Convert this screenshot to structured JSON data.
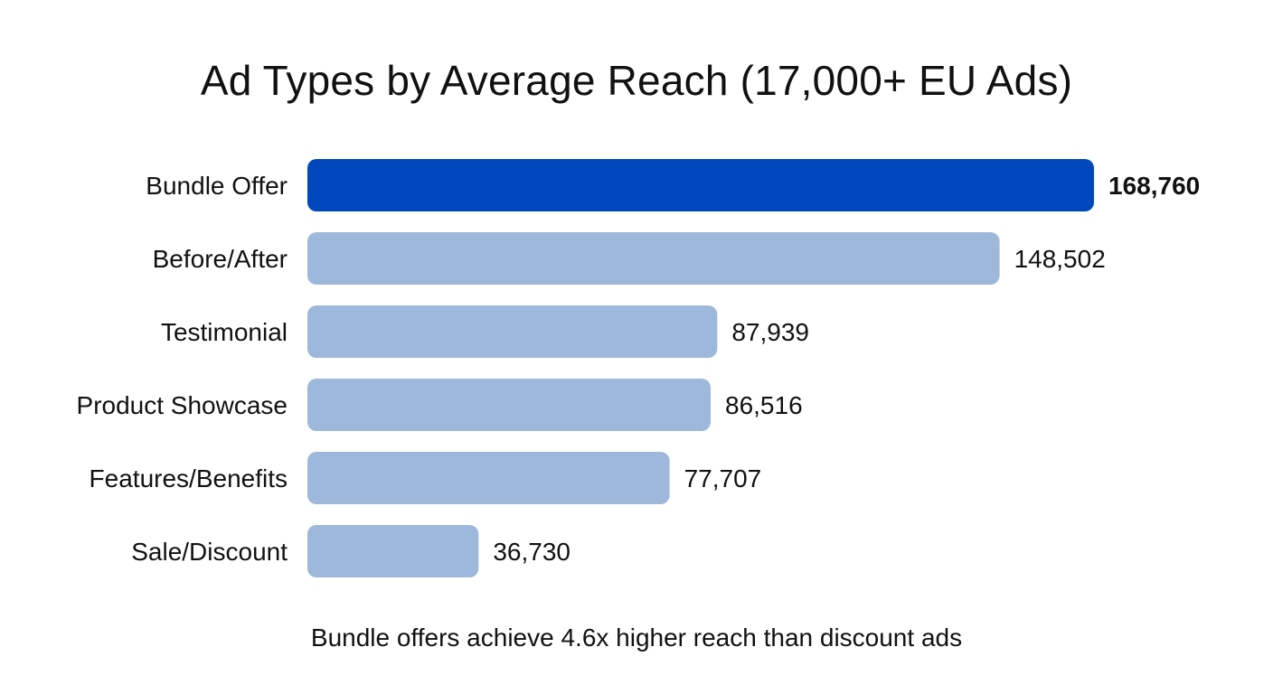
{
  "chart_data": {
    "type": "bar",
    "orientation": "horizontal",
    "title": "Ad Types by Average Reach (17,000+ EU Ads)",
    "categories": [
      "Bundle Offer",
      "Before/After",
      "Testimonial",
      "Product Showcase",
      "Features/Benefits",
      "Sale/Discount"
    ],
    "values": [
      168760,
      148502,
      87939,
      86516,
      77707,
      36730
    ],
    "value_labels": [
      "168,760",
      "148,502",
      "87,939",
      "86,516",
      "77,707",
      "36,730"
    ],
    "highlight_index": 0,
    "colors": {
      "highlight": "#0047BB",
      "default": "#9DB8DA"
    },
    "xlim": [
      0,
      168760
    ],
    "grid": false,
    "legend": "none",
    "footnote": "Bundle offers achieve 4.6x higher reach than discount ads"
  }
}
